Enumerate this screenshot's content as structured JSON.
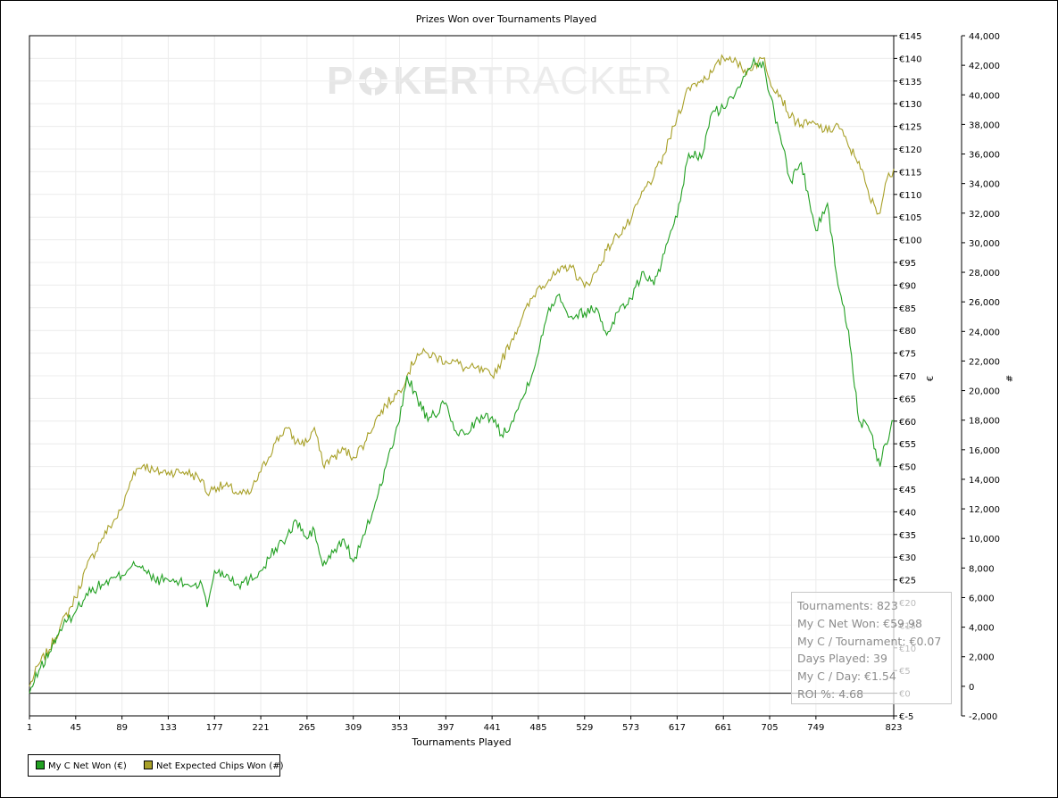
{
  "colors": {
    "series_green": "#22a022",
    "series_olive": "#a8a028",
    "grid": "#ececec"
  },
  "watermark": {
    "left": "P",
    "mark_icon": "poker-chip-icon",
    "middle": "KER",
    "right": "TRACKER"
  },
  "stats": {
    "tournaments": "Tournaments: 823",
    "net_won": "My C Net Won: €59.98",
    "per_tournament": "My C / Tournament: €0.07",
    "days_played": "Days Played: 39",
    "per_day": "My C / Day: €1.54",
    "roi": "ROI %: 4.68"
  },
  "legend": {
    "items": [
      {
        "label": "My C Net Won (€)",
        "color": "#22a022"
      },
      {
        "label": "Net Expected Chips Won (#)",
        "color": "#a8a028"
      }
    ]
  },
  "chart_data": {
    "type": "line",
    "title": "Prizes Won over Tournaments Played",
    "xlabel": "Tournaments Played",
    "ylabel_left": "€",
    "ylabel_right": "#",
    "x_ticks": [
      1,
      45,
      89,
      133,
      177,
      221,
      265,
      309,
      353,
      397,
      441,
      485,
      529,
      573,
      617,
      661,
      705,
      749,
      823
    ],
    "xlim": [
      1,
      823
    ],
    "y_left": {
      "lim": [
        -5,
        145
      ],
      "ticks": [
        -5,
        0,
        5,
        10,
        15,
        20,
        25,
        30,
        35,
        40,
        45,
        50,
        55,
        60,
        65,
        70,
        75,
        80,
        85,
        90,
        95,
        100,
        105,
        110,
        115,
        120,
        125,
        130,
        135,
        140,
        145
      ],
      "tick_labels": [
        "€-5",
        "€0",
        "€5",
        "€10",
        "€15",
        "€20",
        "€25",
        "€30",
        "€35",
        "€40",
        "€45",
        "€50",
        "€55",
        "€60",
        "€65",
        "€70",
        "€75",
        "€80",
        "€85",
        "€90",
        "€95",
        "€100",
        "€105",
        "€110",
        "€115",
        "€120",
        "€125",
        "€130",
        "€135",
        "€140",
        "€145"
      ]
    },
    "y_right": {
      "lim": [
        -2000,
        44000
      ],
      "ticks": [
        -2000,
        0,
        2000,
        4000,
        6000,
        8000,
        10000,
        12000,
        14000,
        16000,
        18000,
        20000,
        22000,
        24000,
        26000,
        28000,
        30000,
        32000,
        34000,
        36000,
        38000,
        40000,
        42000,
        44000
      ],
      "tick_labels": [
        "-2,000",
        "0",
        "2,000",
        "4,000",
        "6,000",
        "8,000",
        "10,000",
        "12,000",
        "14,000",
        "16,000",
        "18,000",
        "20,000",
        "22,000",
        "24,000",
        "26,000",
        "28,000",
        "30,000",
        "32,000",
        "34,000",
        "36,000",
        "38,000",
        "40,000",
        "42,000",
        "44,000"
      ]
    },
    "grid": true,
    "legend_position": "bottom-left",
    "series": [
      {
        "name": "My C Net Won (€)",
        "axis": "left",
        "x": [
          1,
          10,
          20,
          30,
          45,
          55,
          70,
          89,
          100,
          110,
          120,
          133,
          150,
          165,
          170,
          177,
          190,
          200,
          210,
          221,
          235,
          245,
          255,
          265,
          272,
          280,
          290,
          300,
          309,
          320,
          330,
          340,
          353,
          360,
          370,
          380,
          397,
          405,
          415,
          425,
          441,
          450,
          460,
          470,
          485,
          495,
          505,
          515,
          529,
          540,
          550,
          560,
          573,
          585,
          595,
          605,
          617,
          628,
          640,
          650,
          661,
          672,
          680,
          690,
          700,
          705,
          715,
          725,
          735,
          749,
          760,
          770,
          780,
          790,
          800,
          810,
          815,
          823
        ],
        "values": [
          0,
          5,
          9,
          14,
          18,
          22,
          24,
          26,
          29,
          27,
          25,
          25,
          24,
          24,
          19,
          27,
          26,
          24,
          25,
          27,
          32,
          34,
          38,
          34,
          36,
          28,
          31,
          34,
          29,
          35,
          42,
          50,
          60,
          70,
          65,
          60,
          64,
          58,
          57,
          60,
          61,
          57,
          60,
          65,
          75,
          85,
          88,
          83,
          84,
          85,
          79,
          84,
          87,
          93,
          90,
          97,
          105,
          119,
          118,
          128,
          129,
          132,
          136,
          140,
          138,
          132,
          123,
          113,
          117,
          102,
          108,
          90,
          80,
          60,
          58,
          50,
          55,
          60
        ]
      },
      {
        "name": "Net Expected Chips Won (#)",
        "axis": "right",
        "x": [
          1,
          10,
          20,
          30,
          45,
          55,
          70,
          89,
          100,
          110,
          120,
          133,
          150,
          165,
          170,
          177,
          190,
          200,
          210,
          221,
          235,
          245,
          255,
          265,
          272,
          280,
          290,
          300,
          309,
          320,
          330,
          340,
          353,
          360,
          370,
          380,
          397,
          405,
          415,
          425,
          441,
          450,
          460,
          470,
          485,
          495,
          505,
          515,
          529,
          540,
          550,
          560,
          573,
          585,
          595,
          605,
          617,
          628,
          640,
          650,
          661,
          672,
          680,
          690,
          700,
          705,
          715,
          725,
          735,
          749,
          760,
          770,
          780,
          790,
          800,
          810,
          815,
          823
        ],
        "values": [
          0,
          1500,
          2500,
          4000,
          6000,
          8000,
          10000,
          12000,
          14500,
          15000,
          14500,
          14500,
          14500,
          14000,
          13000,
          13500,
          13500,
          13000,
          13000,
          14500,
          16500,
          17500,
          16500,
          16500,
          17500,
          15000,
          15500,
          16000,
          15500,
          16500,
          18000,
          19000,
          20000,
          21000,
          22500,
          22500,
          22000,
          22000,
          21500,
          21500,
          21000,
          22000,
          23500,
          25000,
          27000,
          27500,
          28000,
          28500,
          27000,
          28000,
          29500,
          30500,
          31500,
          33500,
          34500,
          36000,
          38500,
          40500,
          41000,
          41500,
          42500,
          42500,
          41500,
          42000,
          42500,
          41000,
          40000,
          38500,
          38000,
          38000,
          37500,
          38000,
          36500,
          35500,
          33000,
          32000,
          34000,
          35000
        ]
      }
    ]
  }
}
